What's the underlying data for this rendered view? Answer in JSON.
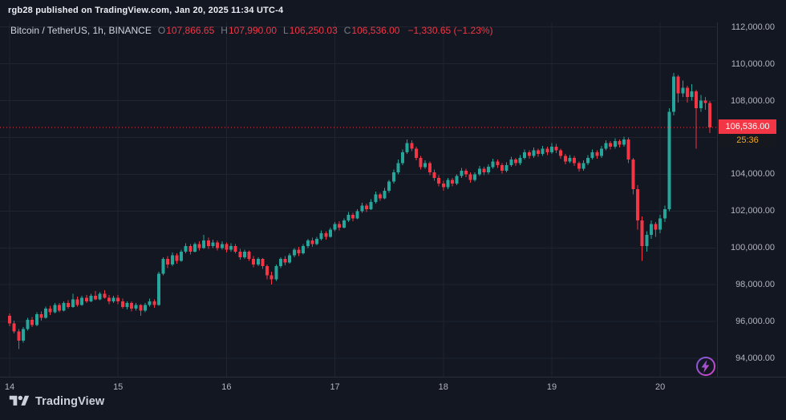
{
  "attribution": "rgb28 published on TradingView.com, Jan 20, 2025 11:34 UTC-4",
  "legend": {
    "symbol": "Bitcoin / TetherUS, 1h, BINANCE",
    "o_label": "O",
    "o_value": "107,866.65",
    "h_label": "H",
    "h_value": "107,990.00",
    "l_label": "L",
    "l_value": "106,250.03",
    "c_label": "C",
    "c_value": "106,536.00",
    "change": "−1,330.65 (−1.23%)"
  },
  "price_axis": {
    "current_price_label": "106,536.00",
    "countdown": "25:36"
  },
  "footer": {
    "brand": "TradingView"
  },
  "colors": {
    "bg": "#131722",
    "up": "#26a69a",
    "down": "#f23645",
    "grid": "#1e2430",
    "axis_line": "#2a2e39",
    "axis_text": "#b2b5be",
    "dotted_line": "#f23645",
    "tag_bg": "#f23645",
    "countdown_text": "#f5a524"
  },
  "chart_data": {
    "type": "candlestick",
    "title": "Bitcoin / TetherUS, 1h, BINANCE",
    "exchange": "BINANCE",
    "interval": "1h",
    "legend_position": "top-left",
    "grid": true,
    "current_price": 106536.0,
    "last_bar": {
      "open": 107866.65,
      "high": 107990.0,
      "low": 106250.03,
      "close": 106536.0,
      "change": -1330.65,
      "change_percent": -1.23
    },
    "y_range": [
      93000,
      112250
    ],
    "y_ticks": [
      94000,
      96000,
      98000,
      100000,
      102000,
      104000,
      106000,
      108000,
      110000,
      112000
    ],
    "y_labels": [
      {
        "value": 112000,
        "label": "112,000.00"
      },
      {
        "value": 110000,
        "label": "110,000.00"
      },
      {
        "value": 108000,
        "label": "108,000.00"
      },
      {
        "value": 104000,
        "label": "104,000.00"
      },
      {
        "value": 102000,
        "label": "102,000.00"
      },
      {
        "value": 100000,
        "label": "100,000.00"
      },
      {
        "value": 98000,
        "label": "98,000.00"
      },
      {
        "value": 96000,
        "label": "96,000.00"
      },
      {
        "value": 94000,
        "label": "94,000.00"
      }
    ],
    "x_ticks": [
      {
        "index": 0,
        "label": "14"
      },
      {
        "index": 24,
        "label": "15"
      },
      {
        "index": 48,
        "label": "16"
      },
      {
        "index": 72,
        "label": "17"
      },
      {
        "index": 96,
        "label": "18"
      },
      {
        "index": 120,
        "label": "19"
      },
      {
        "index": 144,
        "label": "20"
      }
    ],
    "candles": [
      [
        96300,
        96450,
        95750,
        95900
      ],
      [
        95900,
        96050,
        95350,
        95450
      ],
      [
        95450,
        95600,
        94500,
        94950
      ],
      [
        94950,
        95700,
        94850,
        95600
      ],
      [
        95600,
        96200,
        95500,
        96100
      ],
      [
        96100,
        96250,
        95700,
        95800
      ],
      [
        95800,
        96500,
        95750,
        96400
      ],
      [
        96400,
        96550,
        96050,
        96200
      ],
      [
        96200,
        96800,
        96150,
        96700
      ],
      [
        96700,
        96850,
        96350,
        96500
      ],
      [
        96500,
        97000,
        96450,
        96900
      ],
      [
        96900,
        97000,
        96500,
        96600
      ],
      [
        96600,
        97100,
        96550,
        97000
      ],
      [
        97000,
        97150,
        96700,
        96800
      ],
      [
        96800,
        97500,
        96750,
        97200
      ],
      [
        97200,
        97350,
        96800,
        96900
      ],
      [
        96900,
        97400,
        96850,
        97300
      ],
      [
        97300,
        97450,
        97000,
        97100
      ],
      [
        97100,
        97500,
        97050,
        97400
      ],
      [
        97400,
        97650,
        97150,
        97200
      ],
      [
        97200,
        97600,
        97150,
        97500
      ],
      [
        97500,
        97700,
        97250,
        97300
      ],
      [
        97300,
        97450,
        96950,
        97100
      ],
      [
        97100,
        97400,
        97000,
        97300
      ],
      [
        97300,
        97450,
        96950,
        97100
      ],
      [
        97100,
        97250,
        96700,
        96800
      ],
      [
        96800,
        97100,
        96650,
        97000
      ],
      [
        97000,
        97100,
        96550,
        96700
      ],
      [
        96700,
        97000,
        96600,
        96900
      ],
      [
        96900,
        96950,
        96300,
        96600
      ],
      [
        96600,
        97000,
        96500,
        96900
      ],
      [
        96900,
        97250,
        96800,
        97100
      ],
      [
        97100,
        97200,
        96750,
        96900
      ],
      [
        96900,
        98700,
        96850,
        98600
      ],
      [
        98600,
        99500,
        98500,
        99400
      ],
      [
        99400,
        99550,
        98900,
        99100
      ],
      [
        99100,
        99750,
        99000,
        99600
      ],
      [
        99600,
        99700,
        99150,
        99300
      ],
      [
        99300,
        99900,
        99250,
        99800
      ],
      [
        99800,
        100250,
        99700,
        100100
      ],
      [
        100100,
        100200,
        99650,
        99800
      ],
      [
        99800,
        100300,
        99750,
        100200
      ],
      [
        100200,
        100350,
        99850,
        100000
      ],
      [
        100000,
        100700,
        99950,
        100400
      ],
      [
        100400,
        100550,
        99950,
        100100
      ],
      [
        100100,
        100450,
        100000,
        100300
      ],
      [
        100300,
        100400,
        99850,
        100000
      ],
      [
        100000,
        100350,
        99900,
        100200
      ],
      [
        100200,
        100300,
        99750,
        99900
      ],
      [
        99900,
        100250,
        99800,
        100100
      ],
      [
        100100,
        100200,
        99700,
        99800
      ],
      [
        99800,
        99950,
        99350,
        99500
      ],
      [
        99500,
        99900,
        99400,
        99800
      ],
      [
        99800,
        99850,
        99300,
        99400
      ],
      [
        99400,
        99550,
        98950,
        99100
      ],
      [
        99100,
        99500,
        99000,
        99400
      ],
      [
        99400,
        99450,
        98850,
        99000
      ],
      [
        99000,
        99100,
        98300,
        98500
      ],
      [
        98500,
        98700,
        98000,
        98300
      ],
      [
        98300,
        99100,
        98200,
        99000
      ],
      [
        99000,
        99500,
        98900,
        99400
      ],
      [
        99400,
        99550,
        99050,
        99200
      ],
      [
        99200,
        99700,
        99150,
        99600
      ],
      [
        99600,
        100000,
        99500,
        99900
      ],
      [
        99900,
        100050,
        99550,
        99700
      ],
      [
        99700,
        100200,
        99650,
        100100
      ],
      [
        100100,
        100500,
        100000,
        100400
      ],
      [
        100400,
        100550,
        100050,
        100200
      ],
      [
        100200,
        100600,
        100150,
        100500
      ],
      [
        100500,
        100950,
        100400,
        100800
      ],
      [
        100800,
        100900,
        100450,
        100600
      ],
      [
        100600,
        101100,
        100550,
        101000
      ],
      [
        101000,
        101400,
        100900,
        101300
      ],
      [
        101300,
        101450,
        100950,
        101100
      ],
      [
        101100,
        101600,
        101050,
        101500
      ],
      [
        101500,
        101950,
        101400,
        101800
      ],
      [
        101800,
        101900,
        101450,
        101600
      ],
      [
        101600,
        102100,
        101550,
        102000
      ],
      [
        102000,
        102450,
        101900,
        102300
      ],
      [
        102300,
        102400,
        101950,
        102100
      ],
      [
        102100,
        102650,
        102050,
        102500
      ],
      [
        102500,
        103050,
        102400,
        102900
      ],
      [
        102900,
        103000,
        102550,
        102700
      ],
      [
        102700,
        103250,
        102650,
        103100
      ],
      [
        103100,
        103700,
        103000,
        103600
      ],
      [
        103600,
        104250,
        103500,
        104100
      ],
      [
        104100,
        104800,
        104000,
        104600
      ],
      [
        104600,
        105350,
        104500,
        105200
      ],
      [
        105200,
        105900,
        105100,
        105700
      ],
      [
        105700,
        105850,
        105250,
        105400
      ],
      [
        105400,
        105500,
        104750,
        104900
      ],
      [
        104900,
        105000,
        104250,
        104400
      ],
      [
        104400,
        104750,
        104300,
        104600
      ],
      [
        104600,
        104700,
        103950,
        104100
      ],
      [
        104100,
        104250,
        103650,
        103800
      ],
      [
        103800,
        103950,
        103350,
        103500
      ],
      [
        103500,
        103650,
        103100,
        103300
      ],
      [
        103300,
        103800,
        103200,
        103700
      ],
      [
        103700,
        103800,
        103350,
        103500
      ],
      [
        103500,
        104000,
        103400,
        103900
      ],
      [
        103900,
        104350,
        103800,
        104200
      ],
      [
        104200,
        104300,
        103850,
        104000
      ],
      [
        104000,
        104100,
        103550,
        103700
      ],
      [
        103700,
        104100,
        103600,
        104000
      ],
      [
        104000,
        104450,
        103900,
        104300
      ],
      [
        104300,
        104400,
        103950,
        104100
      ],
      [
        104100,
        104550,
        104000,
        104400
      ],
      [
        104400,
        104850,
        104300,
        104700
      ],
      [
        104700,
        104800,
        104350,
        104500
      ],
      [
        104500,
        104600,
        104050,
        104200
      ],
      [
        104200,
        104650,
        104100,
        104500
      ],
      [
        104500,
        104950,
        104400,
        104800
      ],
      [
        104800,
        104900,
        104450,
        104600
      ],
      [
        104600,
        105050,
        104500,
        104900
      ],
      [
        104900,
        105350,
        104800,
        105200
      ],
      [
        105200,
        105300,
        104850,
        105000
      ],
      [
        105000,
        105450,
        104900,
        105300
      ],
      [
        105300,
        105400,
        104950,
        105100
      ],
      [
        105100,
        105550,
        105000,
        105400
      ],
      [
        105400,
        105500,
        105050,
        105200
      ],
      [
        105200,
        105700,
        105100,
        105500
      ],
      [
        105500,
        105650,
        105150,
        105300
      ],
      [
        105300,
        105400,
        104850,
        105000
      ],
      [
        105000,
        105100,
        104550,
        104700
      ],
      [
        104700,
        105050,
        104600,
        104900
      ],
      [
        104900,
        105000,
        104450,
        104600
      ],
      [
        104600,
        104700,
        104150,
        104300
      ],
      [
        104300,
        104750,
        104200,
        104600
      ],
      [
        104600,
        105050,
        104500,
        104900
      ],
      [
        104900,
        105350,
        104800,
        105200
      ],
      [
        105200,
        105300,
        104850,
        105000
      ],
      [
        105000,
        105550,
        104900,
        105400
      ],
      [
        105400,
        105850,
        105300,
        105700
      ],
      [
        105700,
        105800,
        105350,
        105500
      ],
      [
        105500,
        105950,
        105400,
        105800
      ],
      [
        105800,
        105900,
        105450,
        105600
      ],
      [
        105600,
        106050,
        105500,
        105900
      ],
      [
        105900,
        106000,
        104600,
        104800
      ],
      [
        104800,
        104900,
        102900,
        103200
      ],
      [
        103200,
        103400,
        101000,
        101500
      ],
      [
        101500,
        101700,
        99300,
        100100
      ],
      [
        100100,
        100900,
        99800,
        100700
      ],
      [
        100700,
        101500,
        100500,
        101300
      ],
      [
        101300,
        101400,
        100600,
        101000
      ],
      [
        101000,
        101800,
        100800,
        101600
      ],
      [
        101600,
        102300,
        101400,
        102100
      ],
      [
        102100,
        107600,
        102000,
        107400
      ],
      [
        107400,
        109500,
        107200,
        109300
      ],
      [
        109300,
        109400,
        107900,
        108400
      ],
      [
        108400,
        109100,
        108200,
        108700
      ],
      [
        108700,
        108800,
        107900,
        108200
      ],
      [
        108200,
        108900,
        108000,
        108500
      ],
      [
        108500,
        108600,
        105400,
        107600
      ],
      [
        107600,
        108300,
        107400,
        108000
      ],
      [
        108000,
        108200,
        107500,
        107866.65
      ],
      [
        107866.65,
        107990,
        106250.03,
        106536
      ]
    ]
  }
}
